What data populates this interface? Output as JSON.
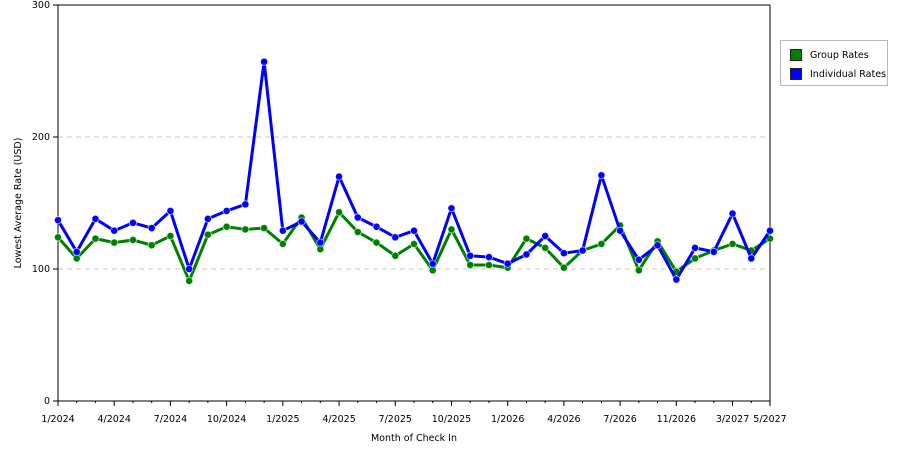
{
  "chart_data": {
    "type": "line",
    "title": "",
    "xlabel": "Month of Check In",
    "ylabel": "Lowest Average Rate (USD)",
    "ylim": [
      0,
      300
    ],
    "yticks": [
      0,
      100,
      200,
      300
    ],
    "grid": "horizontal dashed",
    "legend_position": "right",
    "x_tick_labels": [
      "1/2024",
      "4/2024",
      "7/2024",
      "10/2024",
      "1/2025",
      "4/2025",
      "7/2025",
      "10/2025",
      "1/2026",
      "4/2026",
      "7/2026",
      "11/2026",
      "3/2027",
      "5/2027"
    ],
    "series": [
      {
        "name": "Group Rates",
        "color": "#008000",
        "values": [
          124,
          108,
          123,
          120,
          122,
          118,
          125,
          91,
          126,
          132,
          130,
          131,
          119,
          139,
          115,
          143,
          128,
          120,
          110,
          119,
          99,
          130,
          103,
          103,
          101,
          123,
          116,
          101,
          114,
          119,
          133,
          99,
          121,
          98,
          108,
          114,
          119,
          114,
          123
        ]
      },
      {
        "name": "Individual Rates",
        "color": "#0000ff",
        "values": [
          137,
          113,
          138,
          129,
          135,
          131,
          144,
          100,
          138,
          144,
          149,
          257,
          129,
          136,
          120,
          170,
          139,
          132,
          124,
          129,
          104,
          146,
          110,
          109,
          104,
          111,
          125,
          112,
          114,
          171,
          129,
          107,
          118,
          92,
          116,
          113,
          142,
          108,
          129
        ]
      }
    ]
  },
  "legend": {
    "items": [
      {
        "label": "Group Rates",
        "color": "#008000"
      },
      {
        "label": "Individual Rates",
        "color": "#0000ff"
      }
    ]
  }
}
